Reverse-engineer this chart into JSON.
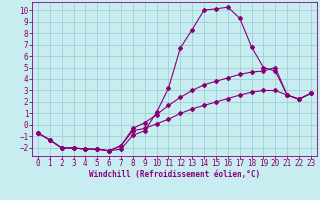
{
  "xlabel": "Windchill (Refroidissement éolien,°C)",
  "bg_color": "#c8edf0",
  "grid_color": "#a0cdd4",
  "line_color": "#880077",
  "spine_color": "#7700aa",
  "xlim": [
    -0.5,
    23.5
  ],
  "ylim": [
    -2.7,
    10.7
  ],
  "xticks": [
    0,
    1,
    2,
    3,
    4,
    5,
    6,
    7,
    8,
    9,
    10,
    11,
    12,
    13,
    14,
    15,
    16,
    17,
    18,
    19,
    20,
    21,
    22,
    23
  ],
  "yticks": [
    -2,
    -1,
    0,
    1,
    2,
    3,
    4,
    5,
    6,
    7,
    8,
    9,
    10
  ],
  "curve1_x": [
    0,
    1,
    2,
    3,
    4,
    5,
    6,
    7,
    8,
    9,
    10,
    11,
    12,
    13,
    14,
    15,
    16,
    17,
    18,
    19,
    20,
    21,
    22,
    23
  ],
  "curve1_y": [
    -0.7,
    -1.3,
    -2.0,
    -2.0,
    -2.1,
    -2.1,
    -2.25,
    -2.1,
    -0.9,
    -0.5,
    1.1,
    3.2,
    6.7,
    8.3,
    10.0,
    10.1,
    10.25,
    9.3,
    6.8,
    5.0,
    4.7,
    2.6,
    2.25,
    2.75
  ],
  "curve2_x": [
    0,
    1,
    2,
    3,
    4,
    5,
    6,
    7,
    8,
    9,
    10,
    11,
    12,
    13,
    14,
    15,
    16,
    17,
    18,
    19,
    20,
    21,
    22,
    23
  ],
  "curve2_y": [
    -0.7,
    -1.3,
    -2.0,
    -2.0,
    -2.1,
    -2.1,
    -2.25,
    -1.8,
    -0.3,
    0.2,
    0.9,
    1.7,
    2.4,
    3.0,
    3.5,
    3.8,
    4.1,
    4.4,
    4.6,
    4.7,
    5.0,
    2.6,
    2.25,
    2.75
  ],
  "curve3_x": [
    0,
    1,
    2,
    3,
    4,
    5,
    6,
    7,
    8,
    9,
    10,
    11,
    12,
    13,
    14,
    15,
    16,
    17,
    18,
    19,
    20,
    21,
    22,
    23
  ],
  "curve3_y": [
    -0.7,
    -1.3,
    -2.0,
    -2.0,
    -2.1,
    -2.1,
    -2.25,
    -1.8,
    -0.5,
    -0.3,
    0.1,
    0.5,
    1.0,
    1.4,
    1.7,
    2.0,
    2.3,
    2.6,
    2.85,
    3.0,
    3.0,
    2.6,
    2.25,
    2.75
  ],
  "tick_fontsize": 5.5,
  "xlabel_fontsize": 5.5,
  "marker_size": 2.0,
  "line_width": 0.8
}
